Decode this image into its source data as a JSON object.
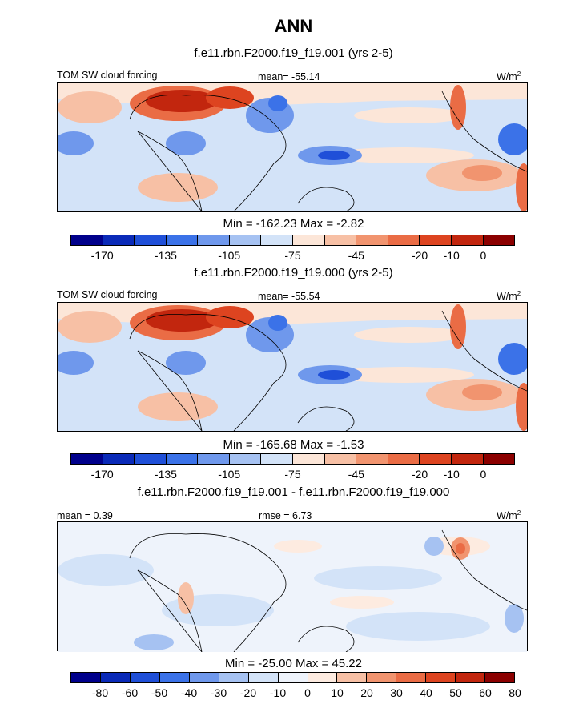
{
  "title": "ANN",
  "panels": [
    {
      "subtitle": "f.e11.rbn.F2000.f19_f19.001 (yrs 2-5)",
      "left_label": "TOM SW cloud forcing",
      "center_label": "mean= -55.14",
      "units": "W/m",
      "units_sup": "2",
      "minmax": "Min = -162.23 Max =  -2.82",
      "colorbar": {
        "colors": [
          "#00008b",
          "#0a2ab8",
          "#1f4fd8",
          "#3b72e8",
          "#6f98ec",
          "#a6c2f2",
          "#d3e3f8",
          "#fce6d8",
          "#f7c0a5",
          "#f1946f",
          "#ea6c45",
          "#dd4420",
          "#c2260e",
          "#8b0000"
        ],
        "ticks": [
          "-170",
          "-135",
          "-105",
          "-75",
          "-45",
          "-20",
          "-10",
          "0"
        ]
      }
    },
    {
      "subtitle": "f.e11.rbn.F2000.f19_f19.000 (yrs 2-5)",
      "left_label": "TOM SW cloud forcing",
      "center_label": "mean= -55.54",
      "units": "W/m",
      "units_sup": "2",
      "minmax": "Min = -165.68 Max =  -1.53",
      "colorbar": {
        "colors": [
          "#00008b",
          "#0a2ab8",
          "#1f4fd8",
          "#3b72e8",
          "#6f98ec",
          "#a6c2f2",
          "#d3e3f8",
          "#fce6d8",
          "#f7c0a5",
          "#f1946f",
          "#ea6c45",
          "#dd4420",
          "#c2260e",
          "#8b0000"
        ],
        "ticks": [
          "-170",
          "-135",
          "-105",
          "-75",
          "-45",
          "-20",
          "-10",
          "0"
        ]
      }
    },
    {
      "subtitle": "f.e11.rbn.F2000.f19_f19.001 - f.e11.rbn.F2000.f19_f19.000",
      "left_label": "mean =   0.39",
      "center_label": "rmse =   6.73",
      "units": "W/m",
      "units_sup": "2",
      "minmax": "Min = -25.00 Max =  45.22",
      "colorbar": {
        "colors": [
          "#00008b",
          "#0a2ab8",
          "#1f4fd8",
          "#3b72e8",
          "#6f98ec",
          "#a6c2f2",
          "#d3e3f8",
          "#eef3fb",
          "#fdebe0",
          "#f7c0a5",
          "#f1946f",
          "#ea6c45",
          "#dd4420",
          "#c2260e",
          "#8b0000"
        ],
        "ticks": [
          "-80",
          "-60",
          "-50",
          "-40",
          "-30",
          "-20",
          "-10",
          "0",
          "10",
          "20",
          "30",
          "40",
          "50",
          "60",
          "80"
        ]
      }
    }
  ]
}
